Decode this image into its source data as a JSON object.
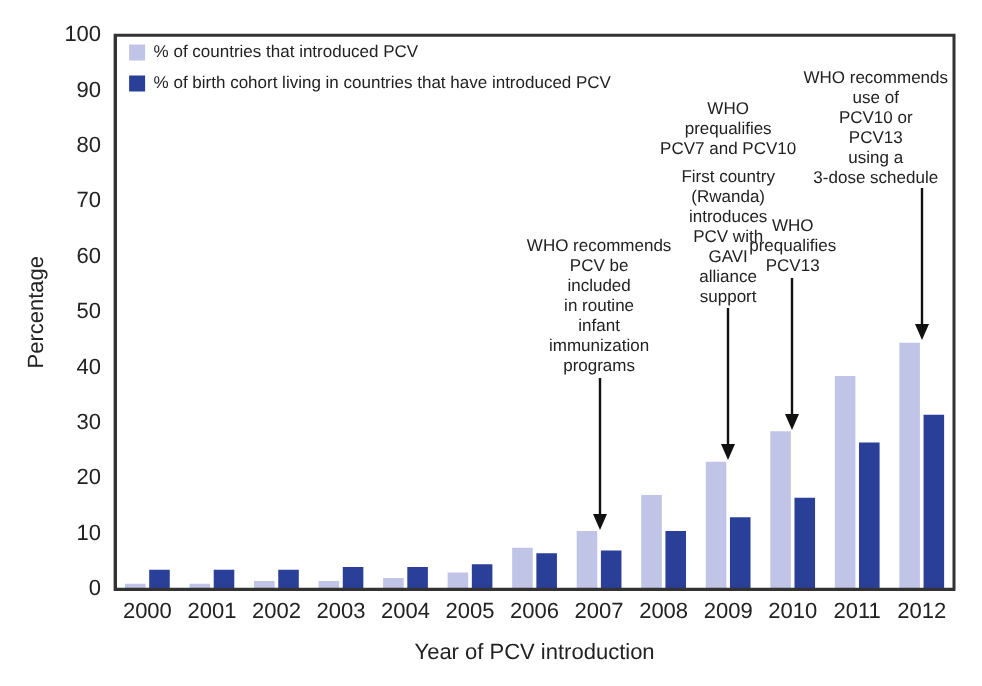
{
  "chart_data": {
    "type": "bar",
    "categories": [
      "2000",
      "2001",
      "2002",
      "2003",
      "2004",
      "2005",
      "2006",
      "2007",
      "2008",
      "2009",
      "2010",
      "2011",
      "2012"
    ],
    "series": [
      {
        "name": "% of countries that introduced PCV",
        "color": "#c0c4e6",
        "values": [
          1,
          1,
          1.5,
          1.5,
          2,
          3,
          7.5,
          10.5,
          17,
          23,
          28.5,
          38.5,
          44.5
        ]
      },
      {
        "name": "% of birth cohort living in countries that have introduced PCV",
        "color": "#2a3f98",
        "values": [
          3.5,
          3.5,
          3.5,
          4,
          4,
          4.5,
          6.5,
          7,
          10.5,
          13,
          16.5,
          26.5,
          31.5
        ]
      }
    ],
    "xlabel": "Year of PCV introduction",
    "ylabel": "Percentage",
    "ylim": [
      0,
      100
    ],
    "yticks": [
      0,
      10,
      20,
      30,
      40,
      50,
      60,
      70,
      80,
      90,
      100
    ],
    "grid": false,
    "legend": "top left",
    "annotations": [
      {
        "text": "WHO recommends\nPCV be\nincluded\nin routine\ninfant\nimmunization\nprograms",
        "x": "2007",
        "y": 10.5
      },
      {
        "text": "First country\n(Rwanda)\nintroduces\nPCV with\nGAVI\nalliance\nsupport",
        "x": "2009",
        "y": 23
      },
      "WHO\nprequalifies\nPCV7 and PCV10",
      {
        "text": "WHO\nprequalifies\nPCV13",
        "x": "2010",
        "y": 28.5
      },
      {
        "text": "WHO recommends\nuse of\nPCV10 or\nPCV13\nusing a\n3-dose schedule",
        "x": "2012",
        "y": 44.5
      }
    ]
  }
}
